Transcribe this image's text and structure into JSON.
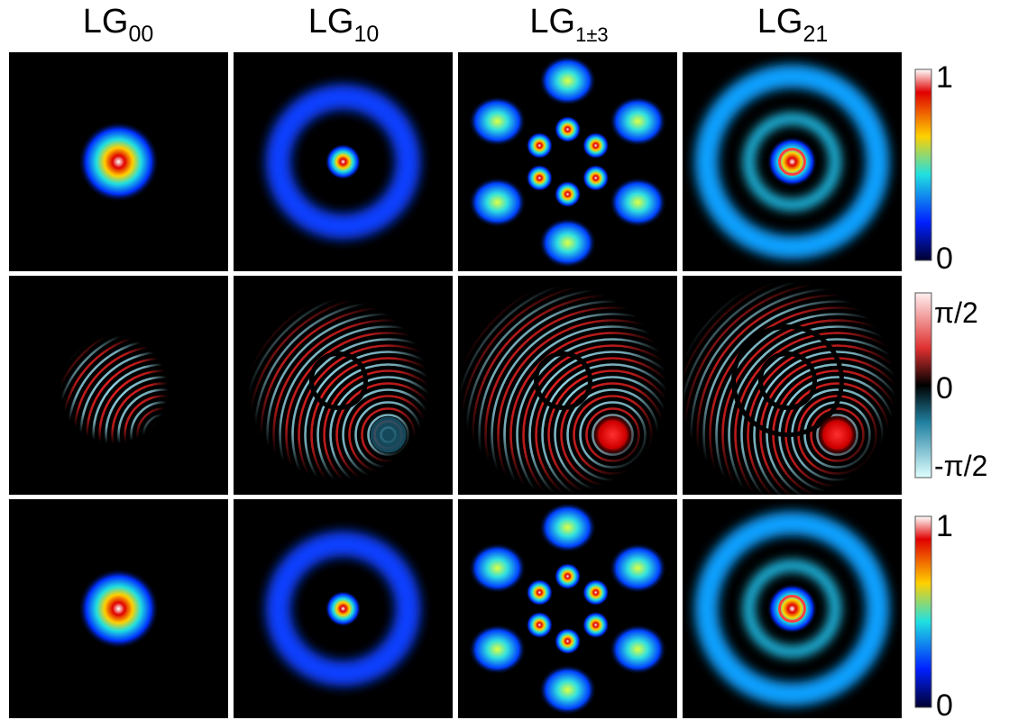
{
  "columns": [
    {
      "base": "LG",
      "subscript": "00"
    },
    {
      "base": "LG",
      "subscript": "10"
    },
    {
      "base": "LG",
      "subscript": "1±3"
    },
    {
      "base": "LG",
      "subscript": "21"
    }
  ],
  "colorbars": [
    {
      "labels": [
        "1",
        "0"
      ]
    },
    {
      "labels": [
        "π/2",
        "0",
        "-π/2"
      ]
    },
    {
      "labels": [
        "1",
        "0"
      ]
    }
  ]
}
